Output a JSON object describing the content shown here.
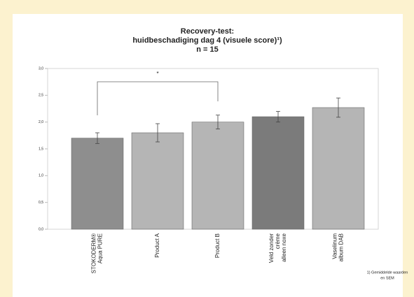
{
  "chart_data": {
    "type": "bar",
    "title": [
      "Recovery-test:",
      "huidbeschadiging dag 4 (visuele score)¹)",
      "n = 15"
    ],
    "categories": [
      [
        "STOKODERM®",
        "Aqua PURE"
      ],
      [
        "Product A"
      ],
      [
        "Product B"
      ],
      [
        "Veld zonder",
        "crème",
        "alleen noxe"
      ],
      [
        "Vaselinum",
        "album DAB"
      ]
    ],
    "values": [
      1.7,
      1.8,
      2.0,
      2.1,
      2.27
    ],
    "errors": [
      0.1,
      0.17,
      0.13,
      0.1,
      0.18
    ],
    "colors": [
      "#8e8e8e",
      "#b5b5b5",
      "#b5b5b5",
      "#7b7b7b",
      "#b5b5b5"
    ],
    "ylim": [
      0,
      3
    ],
    "yticks": [
      {
        "value": 0,
        "label": "0,0"
      },
      {
        "value": 0.5,
        "label": "0,5"
      },
      {
        "value": 1,
        "label": "1,0"
      },
      {
        "value": 1.5,
        "label": "1,5"
      },
      {
        "value": 2,
        "label": "2,0"
      },
      {
        "value": 2.5,
        "label": "2,5"
      },
      {
        "value": 3,
        "label": "3,0"
      }
    ],
    "annotation": "*",
    "footnote": [
      "1) Gemiddelde waarden",
      "en SEM"
    ]
  }
}
